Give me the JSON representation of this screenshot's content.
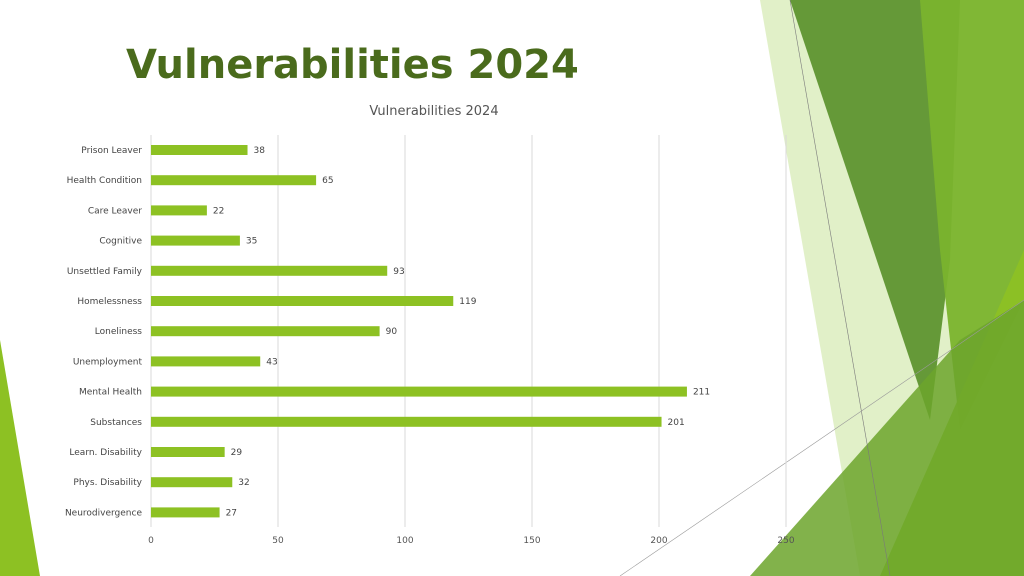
{
  "slide": {
    "title": "Vulnerabilities 2024"
  },
  "colors": {
    "title": "#4a6b1c",
    "bar": "#8dc123",
    "grid": "#d9d9d9",
    "accent_dark": "#4f8a1e",
    "accent_mid": "#7ab32d",
    "accent_light": "#c8e39a"
  },
  "chart_data": {
    "type": "bar",
    "orientation": "horizontal",
    "title": "Vulnerabilities 2024",
    "xlabel": "",
    "ylabel": "",
    "xlim": [
      0,
      250
    ],
    "xticks": [
      0,
      50,
      100,
      150,
      200,
      250
    ],
    "grid": true,
    "legend": "none",
    "data_labels": true,
    "categories": [
      "Prison Leaver",
      "Health Condition",
      "Care Leaver",
      "Cognitive",
      "Unsettled Family",
      "Homelessness",
      "Loneliness",
      "Unemployment",
      "Mental Health",
      "Substances",
      "Learn. Disability",
      "Phys. Disability",
      "Neurodivergence"
    ],
    "values": [
      38,
      65,
      22,
      35,
      93,
      119,
      90,
      43,
      211,
      201,
      29,
      32,
      27
    ]
  }
}
